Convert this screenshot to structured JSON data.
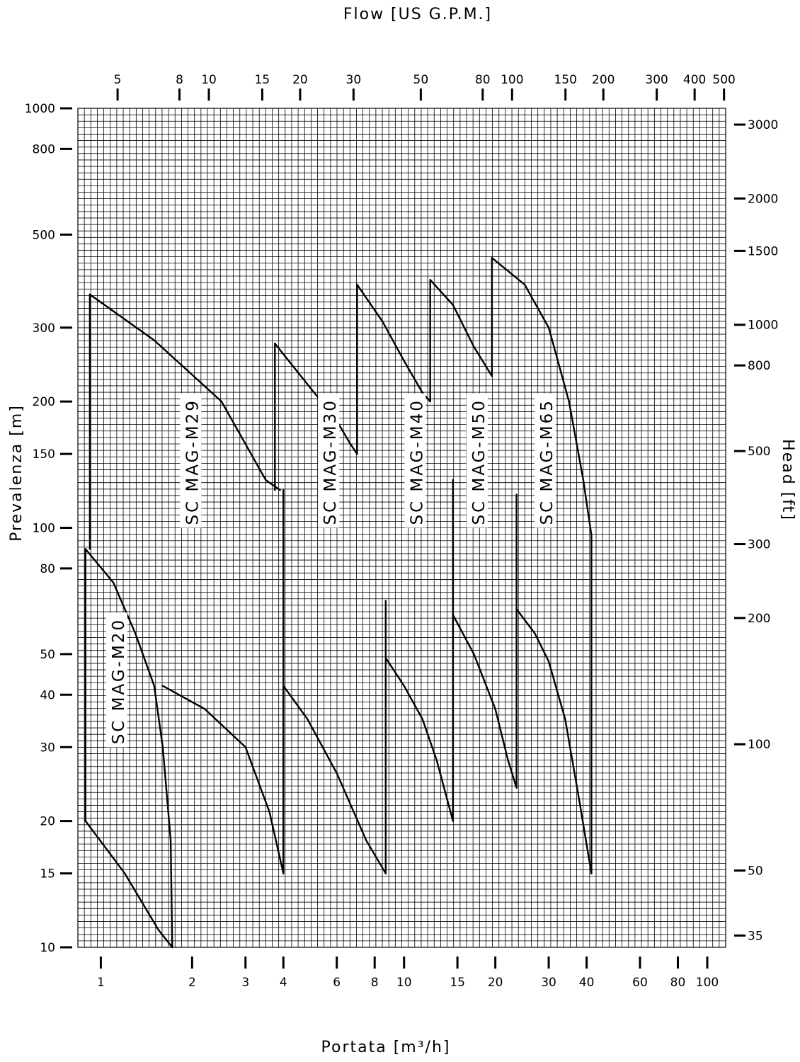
{
  "chart_data": {
    "type": "line",
    "title": "",
    "x_scale": "log",
    "y_scale": "log",
    "xlabel": "Portata [m³/h]",
    "ylabel": "Prevalenza [m]",
    "x2label": "Flow [US G.P.M.]",
    "y2label": "Head [ft]",
    "xlim": [
      0.84,
      115
    ],
    "ylim": [
      10,
      1000
    ],
    "grid": true,
    "x_ticks": [
      1,
      2,
      3,
      4,
      6,
      8,
      10,
      15,
      20,
      30,
      40,
      60,
      80,
      100
    ],
    "y_ticks": [
      10,
      15,
      20,
      30,
      40,
      50,
      80,
      100,
      150,
      200,
      300,
      500,
      800,
      1000
    ],
    "x2_ticks": [
      5,
      8,
      10,
      15,
      20,
      30,
      50,
      80,
      100,
      150,
      200,
      300,
      400,
      500
    ],
    "y2_ticks": [
      35,
      50,
      100,
      200,
      300,
      500,
      800,
      1000,
      1500,
      2000,
      3000
    ],
    "series": [
      {
        "name": "SC MAG-M20",
        "upper": [
          [
            0.92,
            360
          ],
          [
            1.5,
            280
          ],
          [
            2.5,
            200
          ],
          [
            3.5,
            130
          ],
          [
            3.9,
            123
          ]
        ],
        "lower": [
          [
            0.89,
            89
          ],
          [
            1.1,
            74
          ],
          [
            1.3,
            56
          ],
          [
            1.5,
            42
          ],
          [
            1.6,
            30
          ],
          [
            1.7,
            18
          ],
          [
            1.72,
            10
          ]
        ],
        "bottom_line": [
          [
            0.89,
            20
          ],
          [
            1.2,
            15
          ],
          [
            1.55,
            11
          ],
          [
            1.72,
            10
          ]
        ],
        "left_edges": [
          [
            [
              0.89,
              20
            ],
            [
              0.89,
              89
            ]
          ],
          [
            [
              0.92,
              89
            ],
            [
              0.92,
              360
            ]
          ]
        ],
        "right_edges": []
      },
      {
        "name": "SC MAG-M29",
        "upper": [],
        "lower": [
          [
            1.6,
            42
          ],
          [
            2.2,
            37
          ],
          [
            3,
            30
          ],
          [
            3.6,
            21
          ],
          [
            4,
            15
          ]
        ],
        "bottom_line": [],
        "left_edges": [],
        "right_edges": [
          [
            [
              4,
              15
            ],
            [
              4,
              42
            ]
          ]
        ]
      },
      {
        "name": "SC MAG-M30",
        "upper": [
          [
            3.75,
            275
          ],
          [
            4.8,
            220
          ],
          [
            6,
            180
          ],
          [
            6.6,
            160
          ],
          [
            7,
            150
          ]
        ],
        "lower": [
          [
            4,
            42
          ],
          [
            4.8,
            35
          ],
          [
            6,
            26
          ],
          [
            7.5,
            18
          ],
          [
            8.7,
            15
          ]
        ],
        "bottom_line": [],
        "left_edges": [
          [
            [
              3.75,
              123
            ],
            [
              3.75,
              275
            ]
          ],
          [
            [
              7,
              150
            ],
            [
              7,
              380
            ]
          ]
        ],
        "right_edges": [
          [
            [
              4,
              15
            ],
            [
              4,
              123
            ]
          ]
        ]
      },
      {
        "name": "SC MAG-M40",
        "upper": [
          [
            7,
            380
          ],
          [
            8.5,
            310
          ],
          [
            10,
            250
          ],
          [
            11.5,
            210
          ],
          [
            12.2,
            200
          ]
        ],
        "lower": [
          [
            8.7,
            49
          ],
          [
            10,
            42
          ],
          [
            11.5,
            35
          ],
          [
            12.8,
            28
          ],
          [
            14.5,
            20
          ]
        ],
        "bottom_line": [],
        "left_edges": [
          [
            [
              12.2,
              200
            ],
            [
              12.2,
              390
            ]
          ]
        ],
        "right_edges": [
          [
            [
              8.7,
              15
            ],
            [
              8.7,
              67
            ]
          ],
          [
            [
              14.5,
              20
            ],
            [
              14.5,
              130
            ]
          ]
        ]
      },
      {
        "name": "SC MAG-M50",
        "upper": [
          [
            12.2,
            390
          ],
          [
            14.5,
            340
          ],
          [
            17,
            270
          ],
          [
            19.5,
            230
          ]
        ],
        "lower": [
          [
            14.5,
            62
          ],
          [
            17,
            50
          ],
          [
            20,
            37
          ],
          [
            22,
            28
          ],
          [
            23.5,
            24
          ]
        ],
        "bottom_line": [],
        "left_edges": [
          [
            [
              19.5,
              230
            ],
            [
              19.5,
              440
            ]
          ]
        ],
        "right_edges": [
          [
            [
              23.5,
              24
            ],
            [
              23.5,
              120
            ]
          ]
        ]
      },
      {
        "name": "SC MAG-M65",
        "upper": [
          [
            19.5,
            440
          ],
          [
            25,
            380
          ],
          [
            30,
            300
          ],
          [
            35,
            200
          ],
          [
            39,
            130
          ],
          [
            41.5,
            96
          ]
        ],
        "lower": [
          [
            23.5,
            64
          ],
          [
            27,
            56
          ],
          [
            30,
            48
          ],
          [
            34,
            35
          ],
          [
            38,
            22
          ],
          [
            41.5,
            15
          ]
        ],
        "bottom_line": [],
        "left_edges": [],
        "right_edges": [
          [
            [
              41.5,
              15
            ],
            [
              41.5,
              96
            ]
          ]
        ]
      }
    ],
    "labels": [
      {
        "text": "SC MAG-M20",
        "x": 1.14,
        "y": 30
      },
      {
        "text": "SC MAG-M29",
        "x": 2.0,
        "y": 100
      },
      {
        "text": "SC MAG-M30",
        "x": 5.7,
        "y": 100
      },
      {
        "text": "SC MAG-M40",
        "x": 11.0,
        "y": 100
      },
      {
        "text": "SC MAG-M50",
        "x": 17.6,
        "y": 100
      },
      {
        "text": "SC MAG-M65",
        "x": 29.5,
        "y": 100
      }
    ]
  }
}
